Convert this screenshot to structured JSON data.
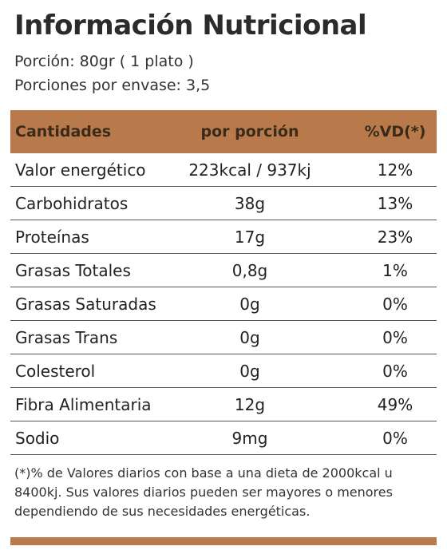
{
  "title": "Información Nutricional",
  "serving_size": "Porción: 80gr ( 1 plato )",
  "servings_per_container": "Porciones por envase: 3,5",
  "colors": {
    "header_bg": "#b87a4b",
    "bottom_bar": "#b87a4b",
    "rule": "#555555"
  },
  "table": {
    "headers": [
      "Cantidades",
      "por porción",
      "%VD(*)"
    ],
    "rows": [
      [
        "Valor energético",
        "223kcal / 937kj",
        "12%"
      ],
      [
        "Carbohidratos",
        "38g",
        "13%"
      ],
      [
        "Proteínas",
        "17g",
        "23%"
      ],
      [
        "Grasas Totales",
        "0,8g",
        "1%"
      ],
      [
        "Grasas Saturadas",
        "0g",
        "0%"
      ],
      [
        "Grasas Trans",
        "0g",
        "0%"
      ],
      [
        "Colesterol",
        "0g",
        "0%"
      ],
      [
        "Fibra Alimentaria",
        "12g",
        "49%"
      ],
      [
        "Sodio",
        "9mg",
        "0%"
      ]
    ]
  },
  "footnote": "(*)% de Valores diarios con base a una dieta de 2000kcal u 8400kj.  Sus valores diarios pueden ser mayores o menores dependiendo  de sus necesidades energéticas."
}
